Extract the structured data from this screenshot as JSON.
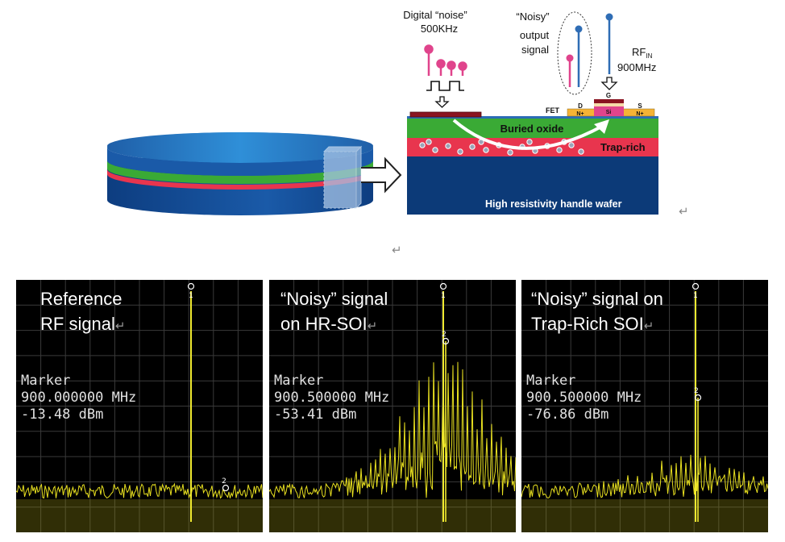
{
  "diagram": {
    "digital_noise_label": [
      "Digital “noise”",
      "500KHz"
    ],
    "noisy_output_label": [
      "“Noisy”",
      "output",
      "signal"
    ],
    "rf_in_label": {
      "main": "RF",
      "sub": "IN",
      "freq": "900MHz"
    },
    "fet_labels": {
      "fet": "FET",
      "drain": "D",
      "drain_region": "N+",
      "gate": "G",
      "channel": "Si",
      "source": "S",
      "source_region": "N+"
    },
    "layers": {
      "buried_oxide": "Buried oxide",
      "trap_rich": "Trap-rich",
      "handle": "High resistivity handle wafer"
    },
    "return_mark": "↵",
    "colors": {
      "oxide": "#3aaa35",
      "trap_rich": "#e8354e",
      "handle": "#0c3a78",
      "noise_pink": "#e0448c",
      "signal_blue": "#2f6db5"
    }
  },
  "spectra": [
    {
      "title_lines": [
        "Reference",
        "RF signal"
      ],
      "marker_label": "Marker",
      "marker_freq": "900.000000 MHz",
      "marker_level": "-13.48 dBm",
      "marker_ids": [
        "1",
        "2"
      ],
      "sideband_level": 0
    },
    {
      "title_lines": [
        "“Noisy” signal",
        "on HR-SOI"
      ],
      "marker_label": "Marker",
      "marker_freq": "900.500000 MHz",
      "marker_level": "-53.41 dBm",
      "marker_ids": [
        "1",
        "2"
      ],
      "sideband_level": 1
    },
    {
      "title_lines": [
        "“Noisy” signal on",
        "Trap-Rich SOI"
      ],
      "marker_label": "Marker",
      "marker_freq": "900.500000 MHz",
      "marker_level": "-76.86 dBm",
      "marker_ids": [
        "1",
        "2"
      ],
      "sideband_level": 0.25
    }
  ]
}
